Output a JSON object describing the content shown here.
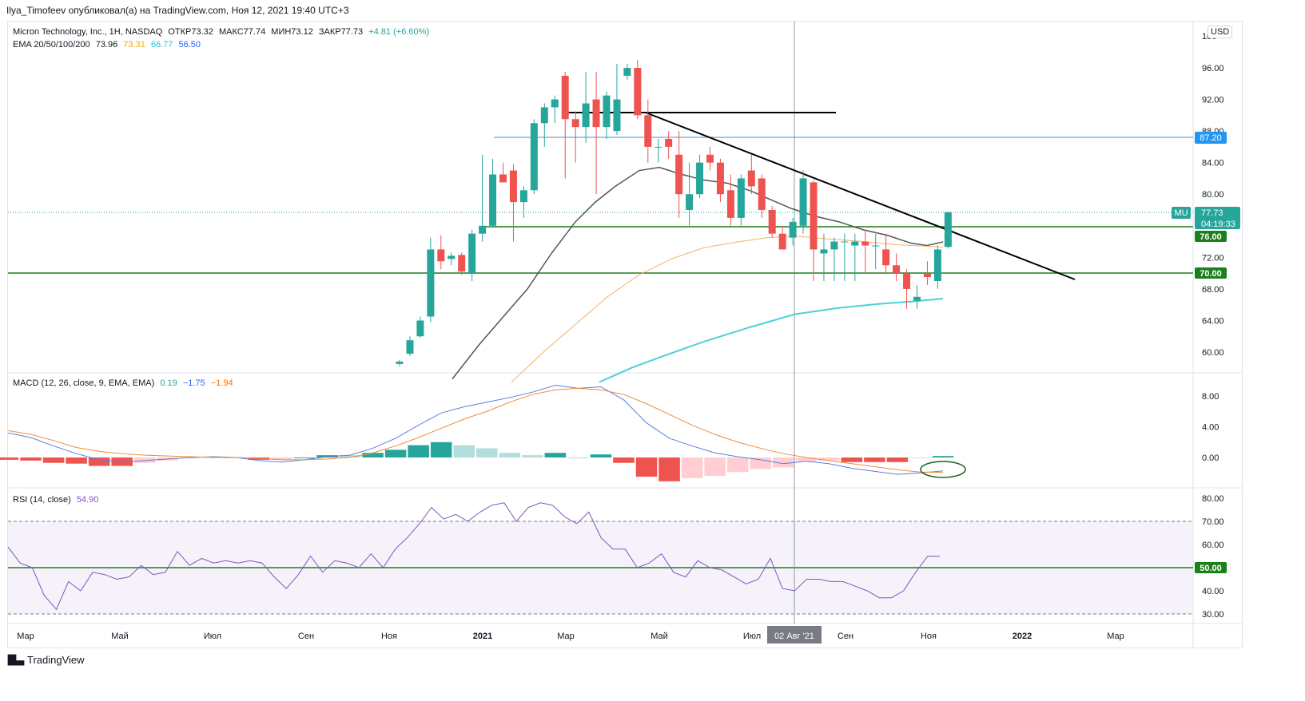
{
  "header": {
    "text": "Ilya_Timofeev опубликовал(а) на TradingView.com, Ноя 12, 2021 19:40 UTC+3"
  },
  "main_legend": {
    "symbol": "Micron Technology, Inc., 1H, NASDAQ",
    "open": "ОТКР73.32",
    "high": "МАКС77.74",
    "low": "МИН73.12",
    "close": "ЗАКР77.73",
    "change": "+4.81 (+6.60%)",
    "ema_label": "EMA 20/50/100/200",
    "ema_values": [
      {
        "value": "73.96",
        "color": "#131722"
      },
      {
        "value": "73.31",
        "color": "#f7a600"
      },
      {
        "value": "66.77",
        "color": "#26c6da"
      },
      {
        "value": "56.50",
        "color": "#2962ff"
      }
    ]
  },
  "macd_legend": {
    "label": "MACD (12, 26, close, 9, EMA, EMA)",
    "values": [
      {
        "value": "0.19",
        "color": "#26a69a"
      },
      {
        "value": "−1.75",
        "color": "#2962ff"
      },
      {
        "value": "−1.94",
        "color": "#ff6d00"
      }
    ]
  },
  "rsi_legend": {
    "label": "RSI (14, close)",
    "value": "54.90",
    "color": "#7e57c2"
  },
  "currency": "USD",
  "price_scale": {
    "ticks": [
      "96.00",
      "92.00",
      "88.00",
      "84.00",
      "80.00",
      "76.00",
      "72.00",
      "68.00",
      "64.00",
      "60.00"
    ],
    "top_partial": "100"
  },
  "macd_scale": {
    "ticks": [
      "8.00",
      "4.00",
      "0.00"
    ]
  },
  "rsi_scale": {
    "ticks": [
      "80.00",
      "70.00",
      "60.00",
      "50.00",
      "40.00",
      "30.00"
    ]
  },
  "price_labels": {
    "level_87": "87.20",
    "symbol_tag": "MU",
    "last_price": "77.73",
    "countdown": "04:19:33",
    "level_76": "76.00",
    "level_70": "70.00",
    "rsi_50": "50.00"
  },
  "time_axis": {
    "labels": [
      "Мар",
      "Май",
      "Июл",
      "Сен",
      "Ноя",
      "2021",
      "Мар",
      "Май",
      "Июл",
      "Сен",
      "Ноя",
      "2022",
      "Мар"
    ],
    "crosshair_label": "02 Авг '21"
  },
  "footer": {
    "brand": "TradingView"
  },
  "colors": {
    "up": "#26a69a",
    "down": "#ef5350",
    "level": "#1b7f1b",
    "ema20": "#555555",
    "ema50": "#f5b06a",
    "ema100": "#4dd0d8",
    "macd": "#5b7fe0",
    "signal": "#ef8c3a",
    "rsi": "#7e57c2"
  },
  "chart_data": [
    {
      "type": "candlestick",
      "title": "Micron Technology, Inc., 1H, NASDAQ",
      "ylim": [
        56,
        100
      ],
      "ohlc": [
        [
          58.5,
          59.0,
          58.2,
          58.8
        ],
        [
          59.8,
          62.0,
          59.5,
          61.5
        ],
        [
          62.0,
          64.5,
          61.8,
          64.0
        ],
        [
          64.5,
          74.5,
          63.8,
          73.0
        ],
        [
          73.0,
          74.8,
          70.5,
          71.5
        ],
        [
          71.8,
          72.6,
          71.0,
          72.2
        ],
        [
          72.3,
          72.6,
          69.8,
          70.2
        ],
        [
          70.0,
          75.5,
          69.0,
          75.0
        ],
        [
          75.0,
          85.0,
          74.0,
          76.0
        ],
        [
          76.0,
          84.5,
          75.8,
          82.5
        ],
        [
          82.5,
          84.0,
          81.5,
          81.5
        ],
        [
          83.0,
          83.8,
          74.0,
          79.0
        ],
        [
          79.0,
          81.0,
          77.0,
          80.5
        ],
        [
          80.5,
          89.5,
          80.0,
          89.0
        ],
        [
          89.0,
          91.5,
          86.0,
          91.0
        ],
        [
          91.0,
          92.5,
          89.0,
          92.0
        ],
        [
          95.0,
          95.5,
          82.0,
          89.5
        ],
        [
          89.5,
          90.5,
          84.0,
          88.5
        ],
        [
          88.5,
          95.5,
          86.5,
          91.5
        ],
        [
          92.0,
          95.5,
          80.0,
          88.5
        ],
        [
          88.5,
          93.0,
          87.0,
          92.5
        ],
        [
          88.0,
          96.5,
          87.5,
          92.0
        ],
        [
          95.0,
          96.5,
          94.5,
          96.0
        ],
        [
          96.0,
          97.0,
          89.5,
          90.0
        ],
        [
          90.0,
          92.0,
          84.0,
          86.0
        ],
        [
          86.0,
          87.0,
          84.0,
          86.0
        ],
        [
          87.0,
          88.0,
          84.5,
          86.0
        ],
        [
          85.0,
          88.0,
          77.0,
          80.0
        ],
        [
          78.0,
          84.0,
          76.0,
          80.0
        ],
        [
          80.0,
          85.0,
          79.5,
          84.0
        ],
        [
          85.0,
          86.0,
          83.0,
          84.0
        ],
        [
          84.0,
          84.5,
          79.0,
          80.0
        ],
        [
          80.5,
          82.5,
          76.0,
          77.0
        ],
        [
          77.0,
          82.5,
          76.0,
          82.0
        ],
        [
          83.0,
          85.0,
          80.0,
          81.0
        ],
        [
          82.0,
          82.5,
          77.0,
          78.0
        ],
        [
          78.0,
          78.5,
          74.5,
          75.0
        ],
        [
          75.0,
          76.0,
          73.0,
          73.0
        ],
        [
          74.5,
          77.0,
          73.5,
          76.5
        ],
        [
          76.0,
          83.0,
          75.0,
          82.0
        ],
        [
          81.5,
          81.8,
          69.0,
          73.0
        ],
        [
          72.5,
          75.0,
          69.0,
          73.0
        ],
        [
          73.0,
          74.5,
          69.0,
          74.0
        ],
        [
          74.0,
          75.0,
          69.0,
          74.0
        ],
        [
          73.5,
          75.0,
          69.0,
          74.0
        ],
        [
          74.0,
          75.5,
          70.0,
          73.5
        ],
        [
          73.5,
          75.0,
          70.5,
          73.5
        ],
        [
          73.0,
          75.0,
          70.0,
          71.0
        ],
        [
          71.0,
          72.5,
          69.0,
          70.0
        ],
        [
          70.0,
          70.5,
          65.5,
          68.0
        ],
        [
          66.5,
          68.5,
          65.5,
          67.0
        ],
        [
          70.0,
          71.5,
          68.5,
          69.5
        ],
        [
          69.0,
          73.5,
          68.0,
          73.0
        ],
        [
          73.32,
          77.74,
          73.12,
          77.73
        ]
      ],
      "ema": {
        "ema20": 73.96,
        "ema50": 73.31,
        "ema100": 66.77,
        "ema200": 56.5
      },
      "horizontal_levels": [
        87.2,
        76.0,
        70.0,
        90.4
      ],
      "last_price": 77.73
    },
    {
      "type": "line",
      "title": "MACD (12, 26, close, 9, EMA, EMA)",
      "ylim": [
        -3,
        10
      ],
      "series": [
        {
          "name": "MACD",
          "values": [
            3.2,
            2.6,
            1.5,
            0.5,
            -0.3,
            -0.6,
            -0.4,
            -0.2,
            0.0,
            0.1,
            0.0,
            -0.4,
            -0.6,
            -0.3,
            0.1,
            0.3,
            1.2,
            2.5,
            4.2,
            5.8,
            6.6,
            7.2,
            7.8,
            8.5,
            9.4,
            9.0,
            9.2,
            7.5,
            4.5,
            2.5,
            1.5,
            0.6,
            0.1,
            -0.3,
            -0.8,
            -0.5,
            -0.8,
            -1.4,
            -1.8,
            -2.2,
            -2.0,
            -1.75
          ]
        },
        {
          "name": "Signal",
          "values": [
            3.5,
            3.0,
            2.2,
            1.3,
            0.8,
            0.5,
            0.3,
            0.2,
            0.1,
            0.0,
            0.0,
            -0.1,
            -0.3,
            -0.3,
            -0.2,
            0.0,
            0.6,
            1.5,
            2.6,
            3.8,
            5.0,
            6.0,
            7.2,
            8.2,
            8.8,
            9.0,
            8.8,
            8.2,
            7.0,
            5.6,
            4.2,
            3.0,
            2.0,
            1.2,
            0.5,
            0.0,
            -0.4,
            -0.8,
            -1.2,
            -1.6,
            -1.9,
            -1.94
          ]
        }
      ],
      "histogram_last": 0.19
    },
    {
      "type": "line",
      "title": "RSI (14, close)",
      "ylim": [
        28,
        82
      ],
      "series": [
        {
          "name": "RSI",
          "values": [
            59,
            52,
            50,
            38,
            32,
            44,
            40,
            48,
            47,
            45,
            46,
            51,
            47,
            48,
            57,
            51,
            54,
            52,
            53,
            52,
            53,
            52,
            46,
            41,
            47,
            55,
            48,
            53,
            52,
            50,
            56,
            50,
            58,
            63,
            69,
            76,
            71,
            73,
            70,
            74,
            77,
            78,
            70,
            76,
            78,
            77,
            72,
            69,
            74,
            63,
            58,
            58,
            50,
            52,
            56,
            48,
            46,
            53,
            50,
            49,
            46,
            43,
            45,
            54,
            41,
            40,
            45,
            45,
            44,
            44,
            42,
            40,
            37,
            37,
            40,
            48,
            55,
            54.9
          ]
        }
      ],
      "bands": [
        70,
        30
      ],
      "midline": 50
    }
  ]
}
